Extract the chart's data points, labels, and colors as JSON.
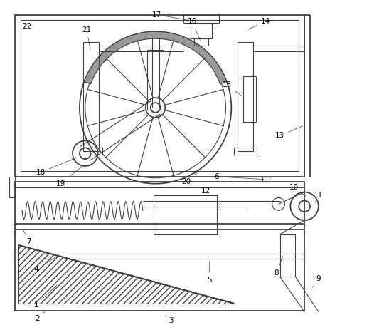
{
  "bg_color": "#ffffff",
  "line_color": "#404040",
  "lw_main": 1.3,
  "lw_thin": 0.8,
  "lw_label": 0.6,
  "label_fontsize": 7.5,
  "fig_width": 5.4,
  "fig_height": 4.63
}
